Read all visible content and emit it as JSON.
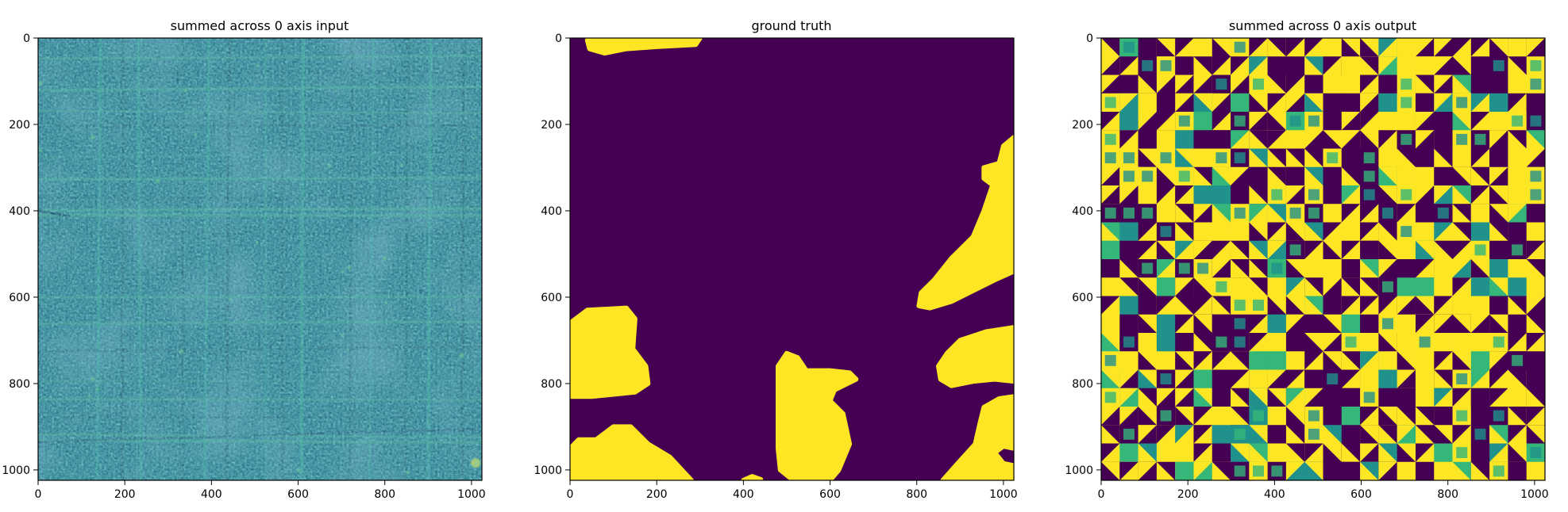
{
  "colors": {
    "viridis_dark": "#440154",
    "viridis_teal": "#21918c",
    "viridis_green": "#35b779",
    "viridis_yellow": "#fde725",
    "input_base": "#2f7c8e"
  },
  "chart_data": [
    {
      "type": "heatmap",
      "title": "summed across 0 axis input",
      "xlabel": "",
      "ylabel": "",
      "xlim": [
        0,
        1024
      ],
      "ylim": [
        1024,
        0
      ],
      "x_ticks": [
        0,
        200,
        400,
        600,
        800,
        1000
      ],
      "y_ticks": [
        0,
        200,
        400,
        600,
        800,
        1000
      ],
      "colormap": "viridis",
      "description_pattern": "noisy teal texture with horizontal and vertical fibres",
      "grid": false
    },
    {
      "type": "heatmap",
      "title": "ground truth",
      "xlabel": "",
      "ylabel": "",
      "xlim": [
        0,
        1024
      ],
      "ylim": [
        1024,
        0
      ],
      "x_ticks": [
        0,
        200,
        400,
        600,
        800,
        1000
      ],
      "y_ticks": [
        0,
        200,
        400,
        600,
        800,
        1000
      ],
      "colormap": "viridis",
      "background_value": 0,
      "regions": [
        {
          "value": 1,
          "outline": [
            [
              80,
              0
            ],
            [
              300,
              0
            ],
            [
              290,
              15
            ],
            [
              200,
              20
            ],
            [
              130,
              25
            ],
            [
              80,
              35
            ],
            [
              45,
              25
            ],
            [
              40,
              5
            ]
          ]
        },
        {
          "value": 1,
          "outline": [
            [
              0,
              660
            ],
            [
              40,
              630
            ],
            [
              130,
              625
            ],
            [
              150,
              650
            ],
            [
              145,
              720
            ],
            [
              175,
              760
            ],
            [
              180,
              800
            ],
            [
              150,
              820
            ],
            [
              50,
              830
            ],
            [
              0,
              830
            ]
          ]
        },
        {
          "value": 1,
          "outline": [
            [
              0,
              950
            ],
            [
              20,
              930
            ],
            [
              60,
              930
            ],
            [
              100,
              900
            ],
            [
              140,
              900
            ],
            [
              180,
              940
            ],
            [
              230,
              970
            ],
            [
              280,
              1024
            ],
            [
              0,
              1024
            ]
          ]
        },
        {
          "value": 1,
          "outline": [
            [
              480,
              760
            ],
            [
              500,
              730
            ],
            [
              525,
              740
            ],
            [
              545,
              770
            ],
            [
              600,
              770
            ],
            [
              645,
              775
            ],
            [
              660,
              790
            ],
            [
              640,
              800
            ],
            [
              610,
              815
            ],
            [
              600,
              840
            ],
            [
              630,
              870
            ],
            [
              645,
              940
            ],
            [
              620,
              1000
            ],
            [
              600,
              1024
            ],
            [
              515,
              1024
            ],
            [
              485,
              1000
            ],
            [
              480,
              950
            ],
            [
              480,
              860
            ]
          ]
        },
        {
          "value": 1,
          "outline": [
            [
              400,
              1024
            ],
            [
              420,
              1015
            ],
            [
              440,
              1022
            ],
            [
              440,
              1024
            ]
          ]
        },
        {
          "value": 1,
          "outline": [
            [
              1024,
              230
            ],
            [
              1000,
              250
            ],
            [
              990,
              290
            ],
            [
              955,
              300
            ],
            [
              955,
              325
            ],
            [
              975,
              340
            ],
            [
              955,
              400
            ],
            [
              930,
              460
            ],
            [
              880,
              510
            ],
            [
              840,
              560
            ],
            [
              810,
              590
            ],
            [
              805,
              620
            ],
            [
              830,
              625
            ],
            [
              880,
              610
            ],
            [
              940,
              580
            ],
            [
              980,
              560
            ],
            [
              1024,
              540
            ]
          ]
        },
        {
          "value": 1,
          "outline": [
            [
              1024,
              670
            ],
            [
              960,
              680
            ],
            [
              900,
              700
            ],
            [
              870,
              730
            ],
            [
              850,
              760
            ],
            [
              855,
              790
            ],
            [
              880,
              805
            ],
            [
              930,
              795
            ],
            [
              980,
              790
            ],
            [
              1024,
              795
            ]
          ]
        },
        {
          "value": 1,
          "outline": [
            [
              1024,
              830
            ],
            [
              990,
              835
            ],
            [
              955,
              855
            ],
            [
              945,
              895
            ],
            [
              935,
              940
            ],
            [
              890,
              990
            ],
            [
              860,
              1024
            ],
            [
              1024,
              1024
            ],
            [
              1024,
              990
            ],
            [
              1000,
              985
            ],
            [
              980,
              960
            ],
            [
              1000,
              945
            ],
            [
              1024,
              950
            ]
          ]
        }
      ],
      "grid": false
    },
    {
      "type": "heatmap",
      "title": "summed across 0 axis output",
      "xlabel": "",
      "ylabel": "",
      "xlim": [
        0,
        1024
      ],
      "ylim": [
        1024,
        0
      ],
      "x_ticks": [
        0,
        200,
        400,
        600,
        800,
        1000
      ],
      "y_ticks": [
        0,
        200,
        400,
        600,
        800,
        1000
      ],
      "colormap": "viridis",
      "description_pattern": "mosaic of yellow, purple and teal triangular/rectangular tiles",
      "grid": false
    }
  ]
}
